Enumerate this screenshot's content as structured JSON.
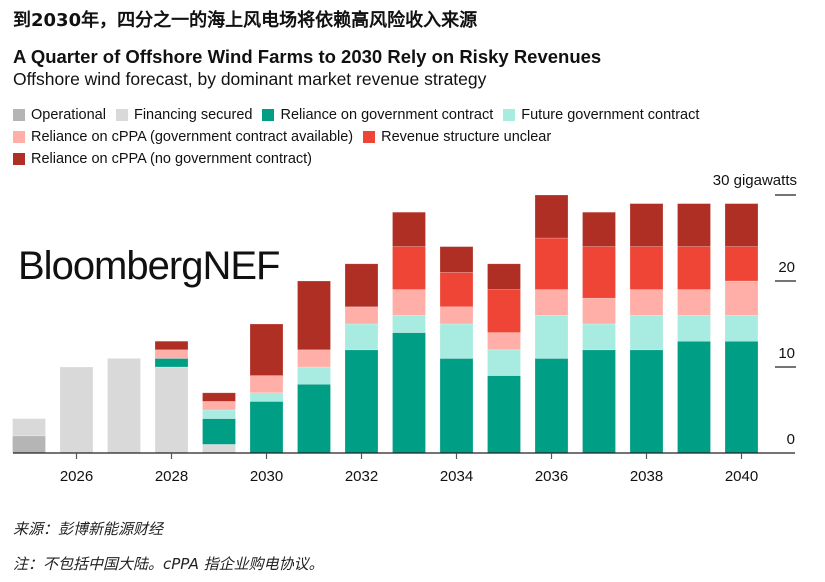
{
  "headline_cn": "到2030年，四分之一的海上风电场将依赖高风险收入来源",
  "chart_data": {
    "type": "bar",
    "stacked": true,
    "title": "A Quarter of Offshore Wind Farms to 2030 Rely on Risky Revenues",
    "subtitle": "Offshore wind forecast, by dominant market revenue strategy",
    "ylabel": "",
    "y_unit_label": "30 gigawatts",
    "ylim": [
      0,
      30
    ],
    "yticks": [
      "0",
      "10",
      "20"
    ],
    "x": [
      2025,
      2026,
      2027,
      2028,
      2029,
      2030,
      2031,
      2032,
      2033,
      2034,
      2035,
      2036,
      2037,
      2038,
      2039,
      2040
    ],
    "xtick_labels": [
      "2026",
      "2028",
      "2030",
      "2032",
      "2034",
      "2036",
      "2038",
      "2040"
    ],
    "legend_position": "top",
    "grid": false,
    "series": [
      {
        "name": "Operational",
        "color": "#b5b5b5",
        "values": [
          2,
          0,
          0,
          0,
          0,
          0,
          0,
          0,
          0,
          0,
          0,
          0,
          0,
          0,
          0,
          0
        ]
      },
      {
        "name": "Financing secured",
        "color": "#d9d9d9",
        "values": [
          2,
          10,
          11,
          10,
          1,
          0,
          0,
          0,
          0,
          0,
          0,
          0,
          0,
          0,
          0,
          0
        ]
      },
      {
        "name": "Reliance on government contract",
        "color": "#009e85",
        "values": [
          0,
          0,
          0,
          1,
          3,
          6,
          8,
          12,
          14,
          11,
          9,
          11,
          12,
          12,
          13,
          13
        ]
      },
      {
        "name": "Future government contract",
        "color": "#a8ebe0",
        "values": [
          0,
          0,
          0,
          0,
          1,
          1,
          2,
          3,
          2,
          4,
          3,
          5,
          3,
          4,
          3,
          3
        ]
      },
      {
        "name": "Reliance on cPPA (government contract available)",
        "color": "#ffafa8",
        "values": [
          0,
          0,
          0,
          1,
          1,
          2,
          2,
          2,
          3,
          2,
          2,
          3,
          3,
          3,
          3,
          4
        ]
      },
      {
        "name": "Revenue structure unclear",
        "color": "#ef4536",
        "values": [
          0,
          0,
          0,
          0,
          0,
          0,
          0,
          0,
          5,
          4,
          5,
          6,
          6,
          5,
          5,
          4
        ]
      },
      {
        "name": "Reliance on cPPA (no government contract)",
        "color": "#b02f25",
        "values": [
          0,
          0,
          0,
          1,
          1,
          6,
          8,
          5,
          4,
          3,
          3,
          5,
          4,
          5,
          5,
          5
        ]
      }
    ]
  },
  "watermark": "BloombergNEF",
  "source": "来源：彭博新能源财经",
  "note": "注：不包括中国大陆。cPPA 指企业购电协议。"
}
